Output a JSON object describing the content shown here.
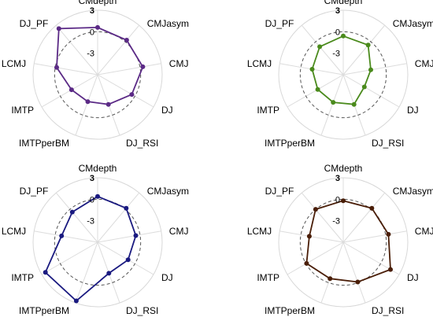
{
  "chart_data": [
    {
      "type": "radar",
      "color": "#5b2a86",
      "categories": [
        "CMdepth",
        "CMJasym",
        "CMJ",
        "DJ",
        "DJ_RSI",
        "IMTPperBM",
        "IMTP",
        "LCMJ",
        "DJ_PF"
      ],
      "values": [
        0.6,
        0.3,
        0.4,
        -0.5,
        -1.6,
        -2.0,
        -1.8,
        -0.2,
        2.4
      ],
      "rlim": [
        -6,
        3
      ],
      "ticks": [
        3,
        0,
        -3
      ],
      "grid": "circular",
      "reference_ring": 0
    },
    {
      "type": "radar",
      "color": "#4a8a1c",
      "categories": [
        "CMdepth",
        "CMJasym",
        "CMJ",
        "DJ",
        "DJ_RSI",
        "IMTPperBM",
        "IMTP",
        "LCMJ",
        "DJ_PF"
      ],
      "values": [
        -0.6,
        -0.6,
        -2.1,
        -2.6,
        -1.6,
        -1.9,
        -1.9,
        -1.6,
        -0.9
      ],
      "rlim": [
        -6,
        3
      ],
      "ticks": [
        3,
        0,
        -3
      ],
      "grid": "circular",
      "reference_ring": 0
    },
    {
      "type": "radar",
      "color": "#1a1a80",
      "categories": [
        "CMdepth",
        "CMJasym",
        "CMJ",
        "DJ",
        "DJ_RSI",
        "IMTPperBM",
        "IMTP",
        "LCMJ",
        "DJ_PF"
      ],
      "values": [
        0.4,
        0.2,
        -0.6,
        -1.1,
        -1.4,
        2.7,
        2.4,
        -0.9,
        -0.5
      ],
      "rlim": [
        -6,
        3
      ],
      "ticks": [
        3,
        0,
        -3
      ],
      "grid": "circular",
      "reference_ring": 0
    },
    {
      "type": "radar",
      "color": "#4a1e08",
      "categories": [
        "CMdepth",
        "CMJasym",
        "CMJ",
        "DJ",
        "DJ_RSI",
        "IMTPperBM",
        "IMTP",
        "LCMJ",
        "DJ_PF"
      ],
      "values": [
        -0.2,
        0.2,
        0.4,
        1.6,
        -0.1,
        -0.6,
        -0.1,
        -1.2,
        0.0
      ],
      "rlim": [
        -6,
        3
      ],
      "ticks": [
        3,
        0,
        -3
      ],
      "grid": "circular",
      "reference_ring": 0
    }
  ]
}
